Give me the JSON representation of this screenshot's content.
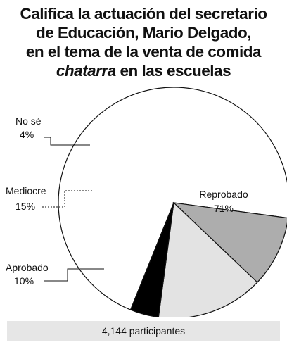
{
  "title": {
    "line1": "Califica la actuación del secretario",
    "line2": "de Educación, Mario Delgado,",
    "line3": "en el tema de la venta de comida",
    "line4_italic": "chatarra",
    "line4_rest": " en las escuelas"
  },
  "footer": {
    "participants": "4,144 participantes"
  },
  "colors": {
    "reprobado": "#ffffff",
    "aprobado": "#adadad",
    "mediocre": "#e3e3e3",
    "no_se": "#000000",
    "outline": "#111111"
  },
  "chart_data": {
    "type": "pie",
    "title": "Califica la actuación del secretario de Educación, Mario Delgado, en el tema de la venta de comida chatarra en las escuelas",
    "slices": [
      {
        "label": "Reprobado",
        "value": 71,
        "value_label": "71%",
        "color": "#ffffff"
      },
      {
        "label": "Aprobado",
        "value": 10,
        "value_label": "10%",
        "color": "#adadad"
      },
      {
        "label": "Mediocre",
        "value": 15,
        "value_label": "15%",
        "color": "#e3e3e3"
      },
      {
        "label": "No sé",
        "value": 4,
        "value_label": "4%",
        "color": "#000000"
      }
    ],
    "legend": "none",
    "annotation": "4,144 participantes"
  }
}
